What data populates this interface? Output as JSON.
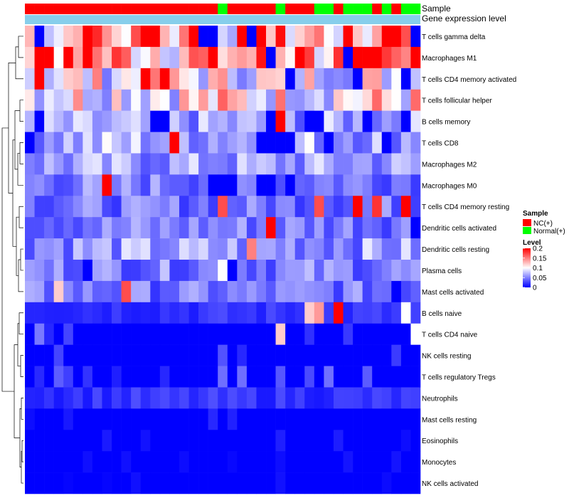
{
  "colors": {
    "nc": "#ff0000",
    "normal": "#00ff00",
    "expr_bar": "#87ceeb",
    "high": "#ff0000",
    "mid": "#ffffff",
    "low": "#0000ff"
  },
  "chart_data": {
    "type": "heatmap",
    "annotation_labels": [
      "Sample",
      "Gene expression level"
    ],
    "sample_groups": [
      "NC",
      "NC",
      "NC",
      "NC",
      "NC",
      "NC",
      "NC",
      "NC",
      "NC",
      "NC",
      "NC",
      "NC",
      "NC",
      "NC",
      "NC",
      "NC",
      "NC",
      "NC",
      "NC",
      "NC",
      "Normal",
      "NC",
      "NC",
      "NC",
      "NC",
      "NC",
      "Normal",
      "NC",
      "NC",
      "NC",
      "Normal",
      "Normal",
      "NC",
      "Normal",
      "Normal",
      "Normal",
      "NC",
      "Normal",
      "NC",
      "Normal",
      "Normal"
    ],
    "rows": [
      "T cells gamma delta",
      "Macrophages M1",
      "T cells CD4 memory activated",
      "T cells follicular helper",
      "B cells memory",
      "T cells CD8",
      "Macrophages M2",
      "Macrophages M0",
      "T cells CD4 memory resting",
      "Dendritic cells activated",
      "Dendritic cells resting",
      "Plasma cells",
      "Mast cells activated",
      "B cells naive",
      "T cells CD4 naive",
      "NK cells resting",
      "T cells regulatory  Tregs",
      "Neutrophils",
      "Mast cells resting",
      "Eosinophils",
      "Monocytes",
      "NK cells activated"
    ],
    "row_base": [
      0.13,
      0.14,
      0.1,
      0.11,
      0.06,
      0.07,
      0.06,
      0.05,
      0.045,
      0.05,
      0.06,
      0.05,
      0.045,
      0.02,
      0.015,
      0.01,
      0.012,
      0.02,
      0.004,
      0.004,
      0.002,
      0.002
    ],
    "highlights": [
      {
        "row": 0,
        "col": 6,
        "v": 0.2
      },
      {
        "row": 0,
        "col": 12,
        "v": 0.2
      },
      {
        "row": 0,
        "col": 13,
        "v": 0.2
      },
      {
        "row": 0,
        "col": 17,
        "v": 0.2
      },
      {
        "row": 0,
        "col": 22,
        "v": 0.2
      },
      {
        "row": 0,
        "col": 24,
        "v": 0.2
      },
      {
        "row": 0,
        "col": 37,
        "v": 0.2
      },
      {
        "row": 0,
        "col": 38,
        "v": 0.2
      },
      {
        "row": 0,
        "col": 1,
        "v": 0.0
      },
      {
        "row": 0,
        "col": 19,
        "v": 0.0
      },
      {
        "row": 0,
        "col": 18,
        "v": 0.0
      },
      {
        "row": 0,
        "col": 23,
        "v": 0.0
      },
      {
        "row": 0,
        "col": 40,
        "v": 0.0
      },
      {
        "row": 1,
        "col": 1,
        "v": 0.2
      },
      {
        "row": 1,
        "col": 6,
        "v": 0.2
      },
      {
        "row": 1,
        "col": 28,
        "v": 0.2
      },
      {
        "row": 1,
        "col": 36,
        "v": 0.2
      },
      {
        "row": 1,
        "col": 40,
        "v": 0.2
      },
      {
        "row": 1,
        "col": 33,
        "v": 0.0
      },
      {
        "row": 1,
        "col": 25,
        "v": 0.0
      },
      {
        "row": 2,
        "col": 1,
        "v": 0.2
      },
      {
        "row": 2,
        "col": 12,
        "v": 0.2
      },
      {
        "row": 2,
        "col": 14,
        "v": 0.2
      },
      {
        "row": 2,
        "col": 27,
        "v": 0.0
      },
      {
        "row": 2,
        "col": 34,
        "v": 0.0
      },
      {
        "row": 2,
        "col": 39,
        "v": 0.0
      },
      {
        "row": 4,
        "col": 26,
        "v": 0.2
      },
      {
        "row": 4,
        "col": 1,
        "v": 0.0
      },
      {
        "row": 4,
        "col": 13,
        "v": 0.0
      },
      {
        "row": 4,
        "col": 14,
        "v": 0.0
      },
      {
        "row": 4,
        "col": 25,
        "v": 0.0
      },
      {
        "row": 4,
        "col": 29,
        "v": 0.0
      },
      {
        "row": 4,
        "col": 30,
        "v": 0.0
      },
      {
        "row": 4,
        "col": 35,
        "v": 0.0
      },
      {
        "row": 4,
        "col": 39,
        "v": 0.0
      },
      {
        "row": 5,
        "col": 15,
        "v": 0.2
      },
      {
        "row": 5,
        "col": 0,
        "v": 0.0
      },
      {
        "row": 5,
        "col": 24,
        "v": 0.0
      },
      {
        "row": 5,
        "col": 25,
        "v": 0.0
      },
      {
        "row": 5,
        "col": 26,
        "v": 0.0
      },
      {
        "row": 5,
        "col": 27,
        "v": 0.0
      },
      {
        "row": 5,
        "col": 31,
        "v": 0.0
      },
      {
        "row": 5,
        "col": 37,
        "v": 0.0
      },
      {
        "row": 7,
        "col": 8,
        "v": 0.2
      },
      {
        "row": 7,
        "col": 19,
        "v": 0.0
      },
      {
        "row": 7,
        "col": 20,
        "v": 0.0
      },
      {
        "row": 7,
        "col": 21,
        "v": 0.0
      },
      {
        "row": 7,
        "col": 24,
        "v": 0.0
      },
      {
        "row": 7,
        "col": 25,
        "v": 0.0
      },
      {
        "row": 7,
        "col": 27,
        "v": 0.0
      },
      {
        "row": 8,
        "col": 30,
        "v": 0.17
      },
      {
        "row": 8,
        "col": 34,
        "v": 0.2
      },
      {
        "row": 8,
        "col": 36,
        "v": 0.18
      },
      {
        "row": 8,
        "col": 39,
        "v": 0.2
      },
      {
        "row": 8,
        "col": 20,
        "v": 0.17
      },
      {
        "row": 9,
        "col": 25,
        "v": 0.2
      },
      {
        "row": 9,
        "col": 40,
        "v": 0.0
      },
      {
        "row": 10,
        "col": 23,
        "v": 0.15
      },
      {
        "row": 11,
        "col": 20,
        "v": 0.1
      },
      {
        "row": 11,
        "col": 21,
        "v": 0.0
      },
      {
        "row": 11,
        "col": 6,
        "v": 0.0
      },
      {
        "row": 12,
        "col": 10,
        "v": 0.17
      },
      {
        "row": 12,
        "col": 3,
        "v": 0.12
      },
      {
        "row": 12,
        "col": 38,
        "v": 0.0
      },
      {
        "row": 13,
        "col": 29,
        "v": 0.12
      },
      {
        "row": 13,
        "col": 30,
        "v": 0.14
      },
      {
        "row": 13,
        "col": 32,
        "v": 0.2
      },
      {
        "row": 13,
        "col": 39,
        "v": 0.1
      },
      {
        "row": 14,
        "col": 26,
        "v": 0.12
      },
      {
        "row": 14,
        "col": 40,
        "v": 0.1
      }
    ],
    "color_scale": {
      "min": 0,
      "max": 0.2,
      "colors": [
        "#0000ff",
        "#ffffff",
        "#ff0000"
      ]
    },
    "legend": {
      "sample_title": "Sample",
      "sample_entries": [
        "NC(+)",
        "Normal(+)"
      ],
      "level_title": "Level",
      "level_ticks": [
        "0.2",
        "0.15",
        "0.1",
        "0.05",
        "0"
      ],
      "level_values": [
        0.2,
        0.15,
        0.1,
        0.05,
        0
      ]
    }
  }
}
